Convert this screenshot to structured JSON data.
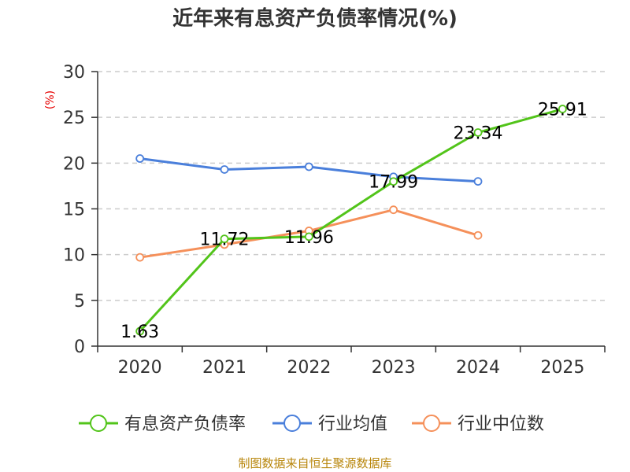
{
  "chart_data": {
    "type": "line",
    "title": "近年来有息资产负债率情况(%)",
    "ylabel": "(%)",
    "categories": [
      "2020",
      "2021",
      "2022",
      "2023",
      "2024",
      "2025"
    ],
    "ylim": [
      0,
      30
    ],
    "yticks": [
      0,
      5,
      10,
      15,
      20,
      25,
      30
    ],
    "grid": true,
    "legend_position": "bottom",
    "series": [
      {
        "name": "有息资产负债率",
        "color": "#52c41a",
        "values": [
          1.63,
          11.72,
          11.96,
          17.99,
          23.34,
          25.91
        ],
        "labels": [
          "1.63",
          "11.72",
          "11.96",
          "17.99",
          "23.34",
          "25.91"
        ]
      },
      {
        "name": "行业均值",
        "color": "#4a7fdb",
        "values": [
          20.5,
          19.3,
          19.6,
          18.5,
          18.0,
          null
        ]
      },
      {
        "name": "行业中位数",
        "color": "#f5905a",
        "values": [
          9.7,
          11.1,
          12.6,
          14.9,
          12.1,
          null
        ]
      }
    ],
    "source": "制图数据来自恒生聚源数据库"
  }
}
